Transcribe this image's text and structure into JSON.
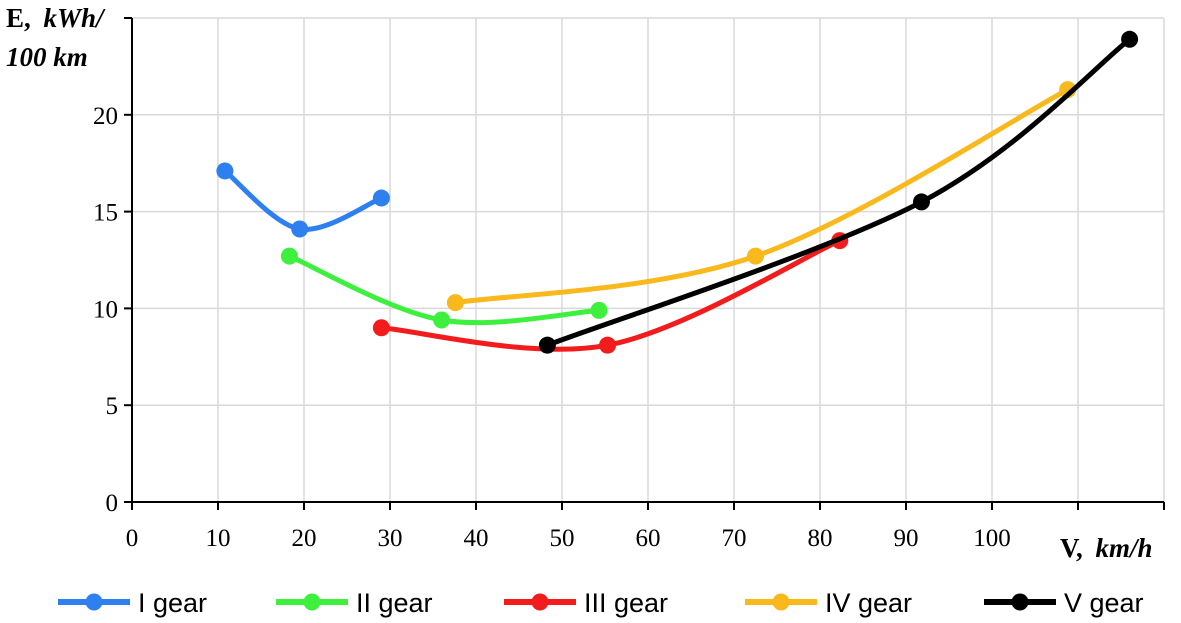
{
  "chart_data": {
    "type": "line",
    "title": "",
    "xlabel": {
      "symbol": "V,",
      "unit": "km/h"
    },
    "ylabel": {
      "symbol": "E,",
      "unit_line1": "kWh/",
      "unit_line2": "100 km"
    },
    "xlim": [
      0,
      120
    ],
    "ylim": [
      0,
      25
    ],
    "xticks": [
      0,
      10,
      20,
      30,
      40,
      50,
      60,
      70,
      80,
      90,
      100
    ],
    "yticks": [
      0,
      5,
      10,
      15,
      20
    ],
    "grid": true,
    "legend_position": "bottom",
    "series": [
      {
        "name": "I gear",
        "color": "#2e7ff0",
        "x": [
          10.8,
          19.5,
          29.0
        ],
        "y": [
          17.1,
          14.1,
          15.7
        ]
      },
      {
        "name": "II gear",
        "color": "#3ef03e",
        "x": [
          18.3,
          36.0,
          54.3
        ],
        "y": [
          12.7,
          9.4,
          9.9
        ]
      },
      {
        "name": "III gear",
        "color": "#f21c1c",
        "x": [
          29.0,
          55.3,
          82.3
        ],
        "y": [
          9.0,
          8.1,
          13.5
        ]
      },
      {
        "name": "IV gear",
        "color": "#f9b81c",
        "x": [
          37.6,
          72.5,
          108.8
        ],
        "y": [
          10.3,
          12.7,
          21.3
        ]
      },
      {
        "name": "V gear",
        "color": "#000000",
        "x": [
          48.3,
          91.8,
          116.0
        ],
        "y": [
          8.1,
          15.5,
          23.9
        ]
      }
    ]
  }
}
